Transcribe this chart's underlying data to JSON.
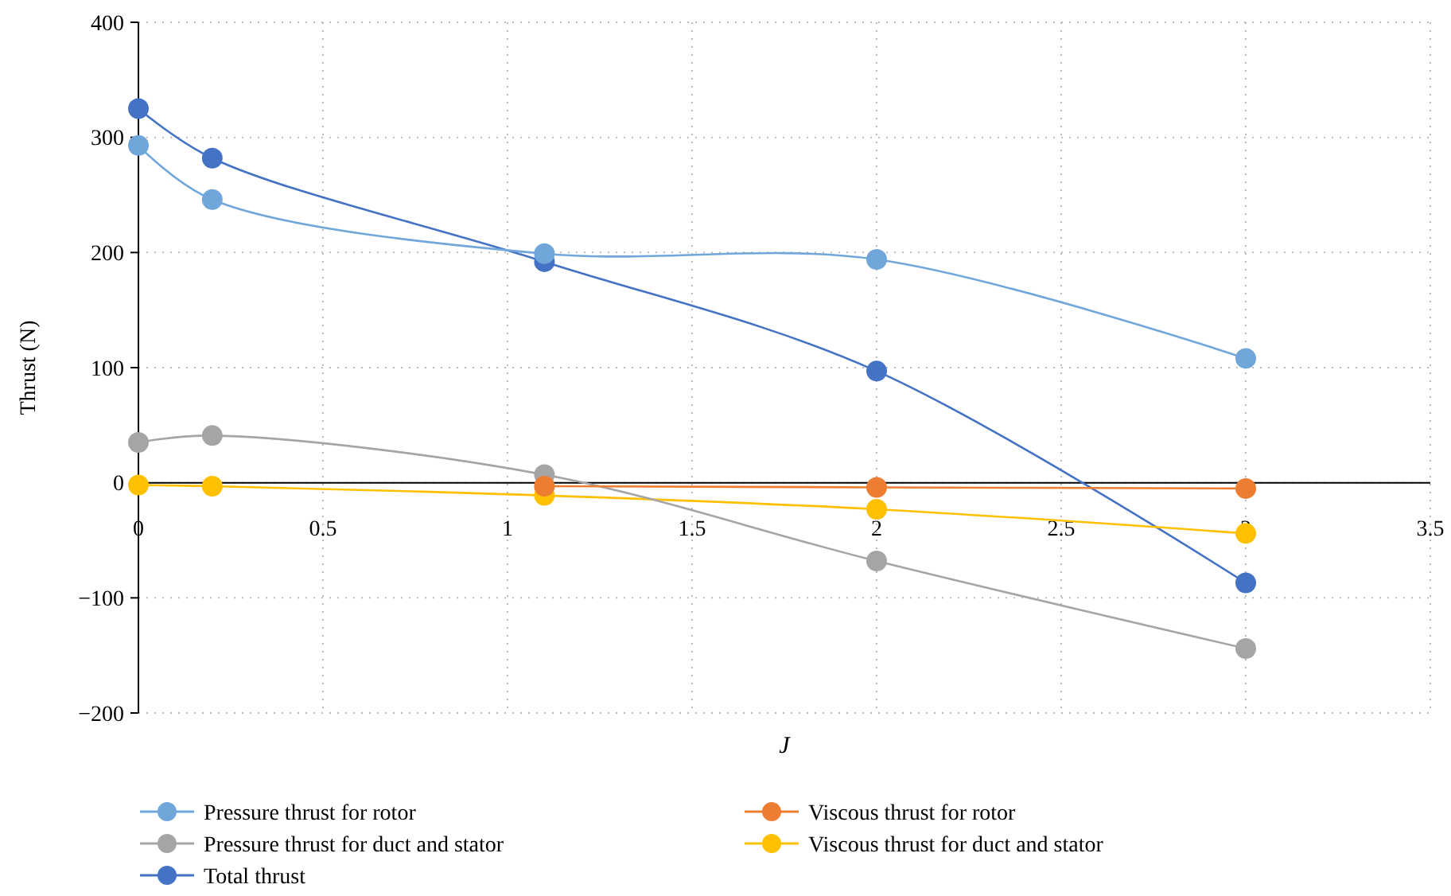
{
  "chart_data": {
    "type": "line",
    "xlabel": "J",
    "ylabel": "Thrust (N)",
    "x": [
      0,
      0.2,
      1.1,
      2,
      3
    ],
    "series": [
      {
        "name": "Pressure thrust for rotor",
        "color": "#71a6db",
        "values": [
          293,
          246,
          199,
          194,
          108
        ]
      },
      {
        "name": "Viscous thrust for rotor",
        "color": "#ed7d31",
        "values": [
          null,
          null,
          -3,
          -4,
          -5
        ]
      },
      {
        "name": "Pressure thrust for duct and stator",
        "color": "#a5a5a5",
        "values": [
          35,
          41,
          7,
          -68,
          -144
        ]
      },
      {
        "name": "Viscous thrust for duct and stator",
        "color": "#ffc000",
        "values": [
          -2,
          -3,
          -11,
          -23,
          -44
        ]
      },
      {
        "name": "Total thrust",
        "color": "#4472c4",
        "values": [
          325,
          282,
          192,
          97,
          -87
        ]
      }
    ],
    "xlim": [
      0,
      3.5
    ],
    "xticks": [
      0,
      0.5,
      1,
      1.5,
      2,
      2.5,
      3,
      3.5
    ],
    "ylim": [
      -200,
      400
    ],
    "yticks": [
      {
        "value": -200,
        "label": "−200"
      },
      {
        "value": -100,
        "label": "−100"
      },
      0,
      100,
      200,
      300,
      400
    ],
    "grid": true,
    "legend": "bottom",
    "marker": "circle",
    "line_style": "solid"
  }
}
